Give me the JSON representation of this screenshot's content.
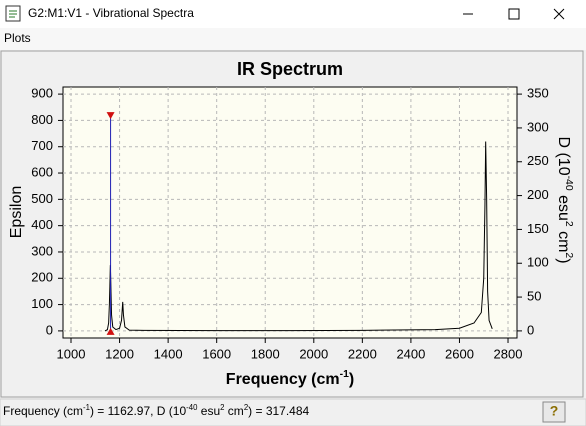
{
  "window": {
    "title": "G2:M1:V1 - Vibrational Spectra",
    "menu": [
      "Plots"
    ]
  },
  "chart_data": {
    "type": "line",
    "title": "IR Spectrum",
    "x_label": [
      "Frequency (cm",
      "-1",
      ")"
    ],
    "y_label": "Epsilon",
    "y2_label": [
      "D (10",
      "-40",
      " esu",
      "2",
      " cm",
      "2",
      ")"
    ],
    "xlim": [
      967,
      2837
    ],
    "ylim": [
      -27,
      927
    ],
    "y2lim": [
      -10.5,
      360.5
    ],
    "xticks": [
      1000,
      1200,
      1400,
      1600,
      1800,
      2000,
      2200,
      2400,
      2600,
      2800
    ],
    "yticks": [
      0,
      100,
      200,
      300,
      400,
      500,
      600,
      700,
      800,
      900
    ],
    "y2ticks": [
      0,
      50,
      100,
      150,
      200,
      250,
      300,
      350
    ],
    "grid": true,
    "series": [
      {
        "color": "#000000",
        "x": [
          1140,
          1150,
          1155,
          1158,
          1160,
          1162,
          1164,
          1167,
          1172,
          1185,
          1200,
          1208,
          1213,
          1216,
          1222,
          1240,
          1300,
          1600,
          1900,
          2200,
          2500,
          2600,
          2660,
          2690,
          2700,
          2705,
          2708,
          2712,
          2716,
          2722,
          2735
        ],
        "values": [
          0,
          5,
          30,
          100,
          170,
          250,
          180,
          60,
          15,
          5,
          10,
          40,
          110,
          60,
          15,
          3,
          2,
          1,
          1,
          2,
          5,
          10,
          30,
          70,
          200,
          480,
          720,
          500,
          150,
          40,
          8
        ]
      },
      {
        "color": "#1f1fb4",
        "axis": "y2",
        "style": "stick",
        "x": [
          1162.97
        ],
        "values": [
          317.484
        ]
      }
    ]
  },
  "status": {
    "parts": [
      "Frequency (cm",
      "-1",
      ") = ",
      ", D (10",
      "-40",
      " esu",
      "2",
      " cm",
      "2",
      ") = "
    ]
  }
}
